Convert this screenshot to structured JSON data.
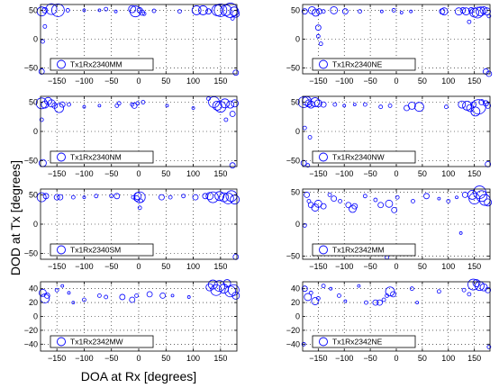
{
  "figure": {
    "xlabel": "DOA at Rx [degrees]",
    "ylabel": "DOD at Tx [degrees]",
    "marker_color": "#0000ff"
  },
  "chart_data": [
    {
      "type": "scatter",
      "legend": "Tx1Rx2340MM",
      "legend_position": "bottom-left",
      "xlim": [
        -180,
        180
      ],
      "ylim": [
        -60,
        60
      ],
      "xticks": [
        -150,
        -100,
        -50,
        0,
        50,
        100,
        150
      ],
      "yticks": [
        50,
        0,
        -50
      ],
      "grid": true,
      "points": [
        [
          -178,
          48,
          5
        ],
        [
          -172,
          50,
          3
        ],
        [
          -160,
          52,
          6
        ],
        [
          -148,
          50,
          7
        ],
        [
          -130,
          50,
          2
        ],
        [
          -100,
          50,
          1.5
        ],
        [
          -72,
          50,
          1.5
        ],
        [
          -60,
          52,
          2
        ],
        [
          -42,
          48,
          1.5
        ],
        [
          -12,
          52,
          4
        ],
        [
          -6,
          48,
          6
        ],
        [
          2,
          50,
          3
        ],
        [
          6,
          46,
          3
        ],
        [
          10,
          44,
          2
        ],
        [
          28,
          49,
          2
        ],
        [
          75,
          48,
          2
        ],
        [
          106,
          50,
          5
        ],
        [
          118,
          50,
          5
        ],
        [
          128,
          48,
          3
        ],
        [
          144,
          50,
          6
        ],
        [
          150,
          50,
          7
        ],
        [
          160,
          50,
          6
        ],
        [
          168,
          50,
          8
        ],
        [
          175,
          48,
          5
        ],
        [
          178,
          44,
          4
        ],
        [
          172,
          36,
          2
        ],
        [
          -172,
          22,
          2
        ],
        [
          -176,
          -4,
          2
        ],
        [
          -178,
          -56,
          3
        ],
        [
          178,
          -58,
          3
        ]
      ]
    },
    {
      "type": "scatter",
      "legend": "Tx1Rx2340NE",
      "legend_position": "bottom-left",
      "xlim": [
        -180,
        180
      ],
      "ylim": [
        -60,
        60
      ],
      "xticks": [
        -150,
        -100,
        -50,
        0,
        50,
        100,
        150
      ],
      "yticks": [
        50,
        0,
        -50
      ],
      "grid": true,
      "points": [
        [
          -176,
          48,
          3
        ],
        [
          -162,
          50,
          4
        ],
        [
          -155,
          46,
          4
        ],
        [
          -148,
          48,
          3
        ],
        [
          -140,
          48,
          2
        ],
        [
          -120,
          50,
          4
        ],
        [
          -98,
          48,
          3
        ],
        [
          -70,
          48,
          2
        ],
        [
          -28,
          48,
          1.5
        ],
        [
          -5,
          50,
          2
        ],
        [
          10,
          46,
          1.5
        ],
        [
          28,
          48,
          1.5
        ],
        [
          88,
          48,
          3
        ],
        [
          92,
          48,
          4
        ],
        [
          120,
          48,
          4
        ],
        [
          128,
          50,
          3
        ],
        [
          134,
          48,
          4
        ],
        [
          144,
          50,
          3
        ],
        [
          150,
          46,
          5
        ],
        [
          156,
          46,
          6
        ],
        [
          162,
          48,
          5
        ],
        [
          168,
          50,
          4
        ],
        [
          174,
          48,
          4
        ],
        [
          178,
          40,
          2
        ],
        [
          -150,
          20,
          3
        ],
        [
          -150,
          5,
          2
        ],
        [
          -145,
          -8,
          2
        ],
        [
          140,
          30,
          2
        ],
        [
          172,
          -56,
          3
        ],
        [
          178,
          -60,
          3
        ]
      ]
    },
    {
      "type": "scatter",
      "legend": "Tx1Rx2340NM",
      "legend_position": "bottom-left",
      "xlim": [
        -180,
        180
      ],
      "ylim": [
        -60,
        60
      ],
      "xticks": [
        -150,
        -100,
        -50,
        0,
        50,
        100,
        150
      ],
      "yticks": [
        50,
        0,
        -50
      ],
      "grid": true,
      "points": [
        [
          -178,
          48,
          6
        ],
        [
          -172,
          46,
          4
        ],
        [
          -166,
          52,
          4
        ],
        [
          -160,
          48,
          4
        ],
        [
          -154,
          44,
          3
        ],
        [
          -146,
          40,
          5
        ],
        [
          -140,
          46,
          3
        ],
        [
          -128,
          46,
          2
        ],
        [
          -100,
          42,
          1.5
        ],
        [
          -72,
          44,
          1.5
        ],
        [
          -40,
          44,
          2
        ],
        [
          -36,
          48,
          2
        ],
        [
          -12,
          46,
          2
        ],
        [
          -8,
          44,
          3
        ],
        [
          -2,
          48,
          2
        ],
        [
          8,
          50,
          2
        ],
        [
          52,
          44,
          1.5
        ],
        [
          100,
          40,
          1.5
        ],
        [
          128,
          56,
          2
        ],
        [
          138,
          50,
          6
        ],
        [
          144,
          44,
          5
        ],
        [
          150,
          42,
          6
        ],
        [
          158,
          48,
          5
        ],
        [
          168,
          46,
          4
        ],
        [
          176,
          48,
          4
        ],
        [
          172,
          30,
          3
        ],
        [
          160,
          20,
          2
        ],
        [
          -178,
          20,
          2
        ],
        [
          -176,
          -54,
          4
        ],
        [
          172,
          -58,
          3
        ]
      ]
    },
    {
      "type": "scatter",
      "legend": "Tx1Rx2340NW",
      "legend_position": "bottom-left",
      "xlim": [
        -180,
        180
      ],
      "ylim": [
        -60,
        60
      ],
      "xticks": [
        -150,
        -100,
        -50,
        0,
        50,
        100,
        150
      ],
      "yticks": [
        50,
        0,
        -50
      ],
      "grid": true,
      "points": [
        [
          -178,
          50,
          6
        ],
        [
          -172,
          52,
          5
        ],
        [
          -168,
          48,
          4
        ],
        [
          -164,
          46,
          4
        ],
        [
          -156,
          50,
          5
        ],
        [
          -150,
          48,
          4
        ],
        [
          -140,
          46,
          3
        ],
        [
          -118,
          46,
          2
        ],
        [
          -100,
          44,
          1.5
        ],
        [
          -80,
          46,
          1.5
        ],
        [
          -60,
          46,
          2
        ],
        [
          -30,
          42,
          2
        ],
        [
          -12,
          44,
          2
        ],
        [
          20,
          40,
          3
        ],
        [
          30,
          44,
          4
        ],
        [
          44,
          42,
          5
        ],
        [
          96,
          42,
          2
        ],
        [
          126,
          46,
          4
        ],
        [
          136,
          44,
          5
        ],
        [
          142,
          40,
          4
        ],
        [
          148,
          46,
          3
        ],
        [
          152,
          34,
          5
        ],
        [
          158,
          42,
          8
        ],
        [
          164,
          50,
          3
        ],
        [
          172,
          48,
          3
        ],
        [
          176,
          44,
          3
        ],
        [
          -176,
          6,
          2
        ],
        [
          -166,
          -10,
          2
        ],
        [
          -178,
          -54,
          3
        ],
        [
          -170,
          -58,
          2
        ],
        [
          176,
          -56,
          3
        ]
      ]
    },
    {
      "type": "scatter",
      "legend": "Tx1Rx2340SM",
      "legend_position": "bottom-left",
      "xlim": [
        -180,
        180
      ],
      "ylim": [
        -60,
        60
      ],
      "xticks": [
        -150,
        -100,
        -50,
        0,
        50,
        100,
        150
      ],
      "yticks": [
        50,
        0,
        -50
      ],
      "grid": true,
      "points": [
        [
          -178,
          46,
          5
        ],
        [
          -170,
          48,
          3
        ],
        [
          -150,
          46,
          3
        ],
        [
          -144,
          46,
          3
        ],
        [
          -120,
          46,
          2
        ],
        [
          -100,
          46,
          1.5
        ],
        [
          -78,
          48,
          2
        ],
        [
          -50,
          48,
          2
        ],
        [
          -40,
          48,
          3
        ],
        [
          -10,
          46,
          2
        ],
        [
          -4,
          44,
          3
        ],
        [
          -2,
          48,
          4
        ],
        [
          2,
          46,
          6
        ],
        [
          4,
          40,
          2
        ],
        [
          2,
          28,
          2
        ],
        [
          42,
          46,
          3
        ],
        [
          58,
          46,
          2
        ],
        [
          82,
          48,
          2
        ],
        [
          104,
          46,
          3
        ],
        [
          122,
          48,
          3
        ],
        [
          130,
          48,
          4
        ],
        [
          136,
          46,
          6
        ],
        [
          148,
          48,
          5
        ],
        [
          156,
          46,
          5
        ],
        [
          164,
          44,
          6
        ],
        [
          170,
          48,
          6
        ],
        [
          176,
          42,
          5
        ],
        [
          178,
          -56,
          3
        ]
      ]
    },
    {
      "type": "scatter",
      "legend": "Tx1Rx2342MM",
      "legend_position": "bottom-left",
      "xlim": [
        -180,
        180
      ],
      "ylim": [
        -55,
        55
      ],
      "xticks": [
        -150,
        -100,
        -50,
        0,
        50,
        100,
        150
      ],
      "yticks": [
        50,
        0,
        -50
      ],
      "grid": true,
      "points": [
        [
          -172,
          46,
          3
        ],
        [
          -168,
          36,
          2
        ],
        [
          -164,
          30,
          3
        ],
        [
          -156,
          26,
          4
        ],
        [
          -150,
          32,
          4
        ],
        [
          -140,
          28,
          3
        ],
        [
          -128,
          46,
          2
        ],
        [
          -120,
          40,
          3
        ],
        [
          -108,
          36,
          2
        ],
        [
          -92,
          30,
          3
        ],
        [
          -84,
          24,
          4
        ],
        [
          -80,
          28,
          3
        ],
        [
          -60,
          44,
          2
        ],
        [
          -40,
          38,
          2
        ],
        [
          -30,
          30,
          3
        ],
        [
          -14,
          32,
          4
        ],
        [
          -4,
          22,
          3
        ],
        [
          2,
          42,
          2
        ],
        [
          32,
          36,
          2
        ],
        [
          58,
          44,
          3
        ],
        [
          82,
          40,
          1.5
        ],
        [
          100,
          36,
          2
        ],
        [
          116,
          42,
          1.5
        ],
        [
          132,
          46,
          3
        ],
        [
          146,
          46,
          5
        ],
        [
          150,
          40,
          6
        ],
        [
          160,
          50,
          7
        ],
        [
          164,
          44,
          6
        ],
        [
          170,
          38,
          6
        ],
        [
          176,
          34,
          4
        ],
        [
          -176,
          -2,
          2
        ],
        [
          -18,
          -52,
          2
        ],
        [
          124,
          -14,
          1.5
        ]
      ]
    },
    {
      "type": "scatter",
      "legend": "Tx1Rx2342MW",
      "legend_position": "bottom-left",
      "xlim": [
        -180,
        180
      ],
      "ylim": [
        -50,
        50
      ],
      "xticks": [
        -150,
        -100,
        -50,
        0,
        50,
        100,
        150
      ],
      "yticks": [
        40,
        20,
        0,
        -20,
        -40
      ],
      "grid": true,
      "points": [
        [
          -176,
          34,
          4
        ],
        [
          -172,
          26,
          5
        ],
        [
          -168,
          30,
          3
        ],
        [
          -150,
          38,
          2
        ],
        [
          -140,
          44,
          1.5
        ],
        [
          -128,
          34,
          1.5
        ],
        [
          -120,
          20,
          1.5
        ],
        [
          -100,
          24,
          2
        ],
        [
          -72,
          30,
          2
        ],
        [
          -60,
          28,
          2
        ],
        [
          -30,
          28,
          3
        ],
        [
          -12,
          24,
          3
        ],
        [
          -4,
          30,
          2
        ],
        [
          20,
          32,
          3
        ],
        [
          44,
          30,
          3
        ],
        [
          62,
          30,
          1.5
        ],
        [
          92,
          28,
          1.5
        ],
        [
          130,
          42,
          4
        ],
        [
          136,
          46,
          5
        ],
        [
          142,
          38,
          6
        ],
        [
          148,
          44,
          6
        ],
        [
          156,
          40,
          5
        ],
        [
          162,
          48,
          4
        ],
        [
          168,
          36,
          6
        ],
        [
          174,
          38,
          6
        ],
        [
          178,
          30,
          4
        ]
      ]
    },
    {
      "type": "scatter",
      "legend": "Tx1Rx2342NE",
      "legend_position": "bottom-left",
      "xlim": [
        -180,
        180
      ],
      "ylim": [
        -50,
        50
      ],
      "xticks": [
        -150,
        -100,
        -50,
        0,
        50,
        100,
        150
      ],
      "yticks": [
        40,
        20,
        0,
        -20,
        -40
      ],
      "grid": true,
      "points": [
        [
          -176,
          40,
          3
        ],
        [
          -170,
          28,
          4
        ],
        [
          -164,
          34,
          2
        ],
        [
          -156,
          22,
          4
        ],
        [
          -150,
          26,
          2
        ],
        [
          -140,
          44,
          2
        ],
        [
          -126,
          40,
          1.5
        ],
        [
          -110,
          30,
          2
        ],
        [
          -98,
          22,
          1.5
        ],
        [
          -72,
          44,
          1.5
        ],
        [
          -58,
          20,
          2
        ],
        [
          -40,
          20,
          3
        ],
        [
          -32,
          20,
          3
        ],
        [
          -24,
          24,
          2
        ],
        [
          -18,
          30,
          2
        ],
        [
          -12,
          36,
          5
        ],
        [
          -6,
          32,
          3
        ],
        [
          30,
          40,
          2
        ],
        [
          40,
          20,
          1.5
        ],
        [
          82,
          36,
          2
        ],
        [
          130,
          38,
          2
        ],
        [
          140,
          32,
          2
        ],
        [
          148,
          46,
          6
        ],
        [
          154,
          48,
          4
        ],
        [
          160,
          44,
          5
        ],
        [
          168,
          42,
          4
        ],
        [
          176,
          38,
          3
        ],
        [
          -178,
          -40,
          2
        ],
        [
          178,
          -44,
          2
        ]
      ]
    }
  ]
}
